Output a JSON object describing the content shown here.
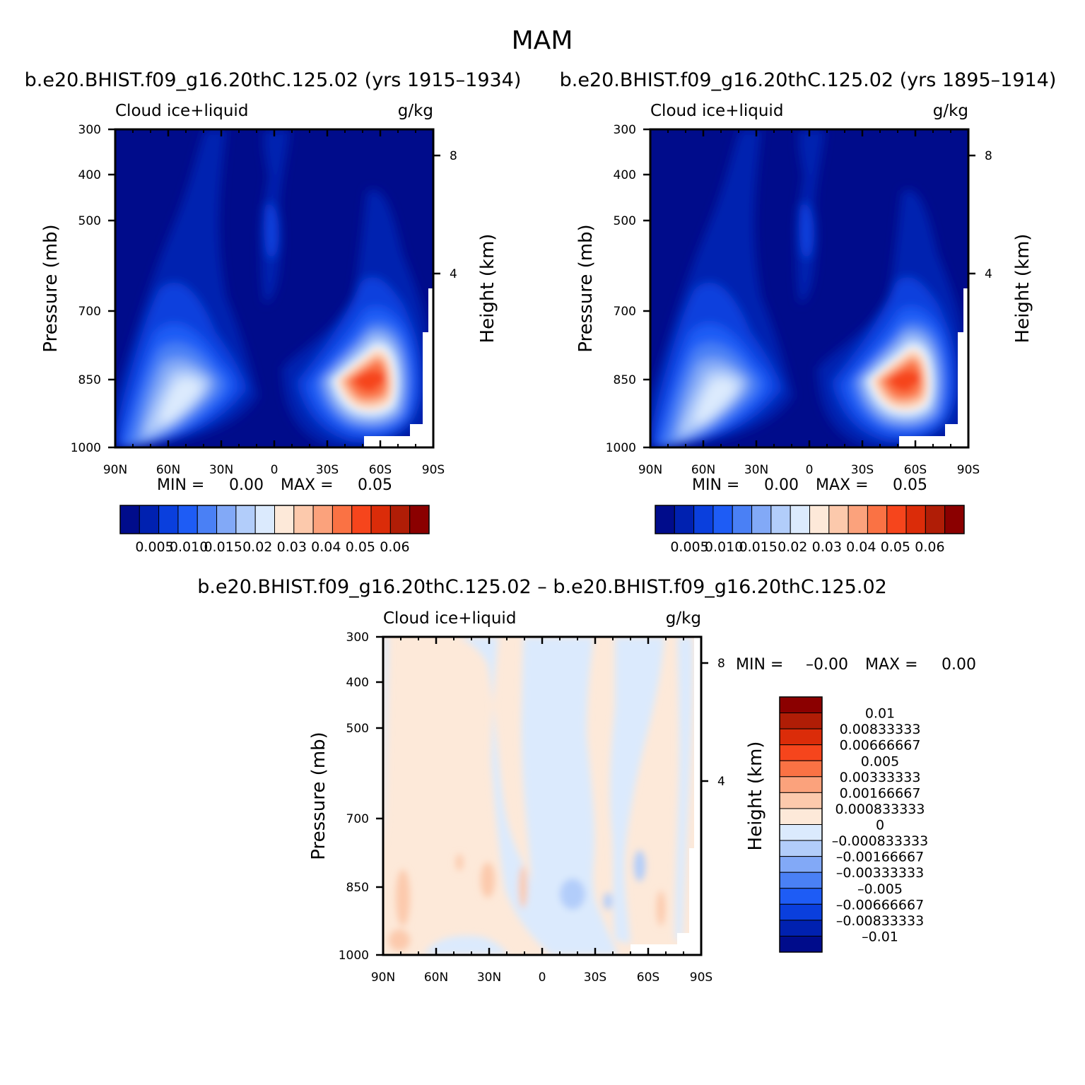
{
  "page": {
    "title": "MAM",
    "diff_title": "b.e20.BHIST.f09_g16.20thC.125.02 – b.e20.BHIST.f09_g16.20thC.125.02"
  },
  "shared": {
    "y_ticks": [
      "300",
      "400",
      "500",
      "700",
      "850",
      "1000"
    ],
    "x_ticks": [
      "90N",
      "60N",
      "30N",
      "0",
      "30S",
      "60S",
      "90S"
    ],
    "y_label": "Pressure (mb)",
    "y2_label": "Height (km)",
    "y2_ticks": [
      "8",
      "4"
    ],
    "x_range": [
      -90,
      90
    ],
    "y_range_mb": [
      1000,
      300
    ],
    "y_scale": "log"
  },
  "panels": [
    {
      "title": "b.e20.BHIST.f09_g16.20thC.125.02 (yrs 1915–1934)",
      "var_label": "Cloud ice+liquid",
      "units": "g/kg",
      "min_text": "MIN =",
      "min_value": "0.00",
      "max_text": "MAX =",
      "max_value": "0.05"
    },
    {
      "title": "b.e20.BHIST.f09_g16.20thC.125.02 (yrs 1895–1914)",
      "var_label": "Cloud ice+liquid",
      "units": "g/kg",
      "min_text": "MIN =",
      "min_value": "0.00",
      "max_text": "MAX =",
      "max_value": "0.05"
    },
    {
      "var_label": "Cloud ice+liquid",
      "units": "g/kg",
      "min_text": "MIN =",
      "min_value": "–0.00",
      "max_text": "MAX =",
      "max_value": "0.00"
    }
  ],
  "colorbar_main": {
    "colors": [
      "#000c8b",
      "#0021b0",
      "#0a3fdd",
      "#1e5cf5",
      "#4a80f5",
      "#82a9f7",
      "#b2cdfa",
      "#dbeafd",
      "#fde9d9",
      "#fcc9ac",
      "#fba27c",
      "#fa7244",
      "#f6451c",
      "#db2c09",
      "#b01d06",
      "#8b0000"
    ],
    "labels": [
      "0.005",
      "0.010",
      "0.015",
      "0.02",
      "0.03",
      "0.04",
      "0.05",
      "0.06"
    ]
  },
  "colorbar_diff": {
    "colors": [
      "#000c8b",
      "#0021b0",
      "#0a3fdd",
      "#1e5cf5",
      "#4a80f5",
      "#82a9f7",
      "#b2cdfa",
      "#dbeafd",
      "#fde9d9",
      "#fcc9ac",
      "#fba27c",
      "#fa7244",
      "#f6451c",
      "#db2c09",
      "#b01d06",
      "#8b0000"
    ],
    "labels": [
      "0.01",
      "0.00833333",
      "0.00666667",
      "0.005",
      "0.00333333",
      "0.00166667",
      "0.000833333",
      "0",
      "–0.000833333",
      "–0.00166667",
      "–0.00333333",
      "–0.005",
      "–0.00666667",
      "–0.00833333",
      "–0.01"
    ]
  },
  "chart_data": [
    {
      "type": "heatmap",
      "title": "b.e20.BHIST.f09_g16.20thC.125.02 (yrs 1915–1934)",
      "variable": "Cloud ice+liquid",
      "units": "g/kg",
      "xlabel": "",
      "ylabel": "Pressure (mb)",
      "y2label": "Height (km)",
      "xlim": [
        -90,
        90
      ],
      "ylim": [
        1000,
        300
      ],
      "levels": [
        0.005,
        0.01,
        0.015,
        0.02,
        0.03,
        0.04,
        0.05,
        0.06
      ],
      "min": 0.0,
      "max": 0.05,
      "features": [
        {
          "lat": -58,
          "p": 850,
          "value": 0.05,
          "note": "max, SH midlatitude low cloud"
        },
        {
          "lat": 55,
          "p": 850,
          "value": 0.03,
          "note": "NH midlatitude low cloud"
        },
        {
          "lat": 0,
          "p": 500,
          "value": 0.01,
          "note": "equatorial upper-level"
        }
      ]
    },
    {
      "type": "heatmap",
      "title": "b.e20.BHIST.f09_g16.20thC.125.02 (yrs 1895–1914)",
      "variable": "Cloud ice+liquid",
      "units": "g/kg",
      "xlabel": "",
      "ylabel": "Pressure (mb)",
      "y2label": "Height (km)",
      "xlim": [
        -90,
        90
      ],
      "ylim": [
        1000,
        300
      ],
      "levels": [
        0.005,
        0.01,
        0.015,
        0.02,
        0.03,
        0.04,
        0.05,
        0.06
      ],
      "min": 0.0,
      "max": 0.05,
      "features": [
        {
          "lat": -58,
          "p": 850,
          "value": 0.05
        },
        {
          "lat": 55,
          "p": 850,
          "value": 0.03
        },
        {
          "lat": 0,
          "p": 500,
          "value": 0.01
        }
      ]
    },
    {
      "type": "heatmap",
      "title": "b.e20.BHIST.f09_g16.20thC.125.02 – b.e20.BHIST.f09_g16.20thC.125.02",
      "variable": "Cloud ice+liquid",
      "units": "g/kg",
      "xlabel": "",
      "ylabel": "Pressure (mb)",
      "y2label": "Height (km)",
      "xlim": [
        -90,
        90
      ],
      "ylim": [
        1000,
        300
      ],
      "levels": [
        -0.01,
        -0.00833333,
        -0.00666667,
        -0.005,
        -0.00333333,
        -0.00166667,
        -0.000833333,
        0,
        0.000833333,
        0.00166667,
        0.00333333,
        0.005,
        0.00666667,
        0.00833333,
        0.01
      ],
      "min": -0.0,
      "max": 0.0
    }
  ]
}
